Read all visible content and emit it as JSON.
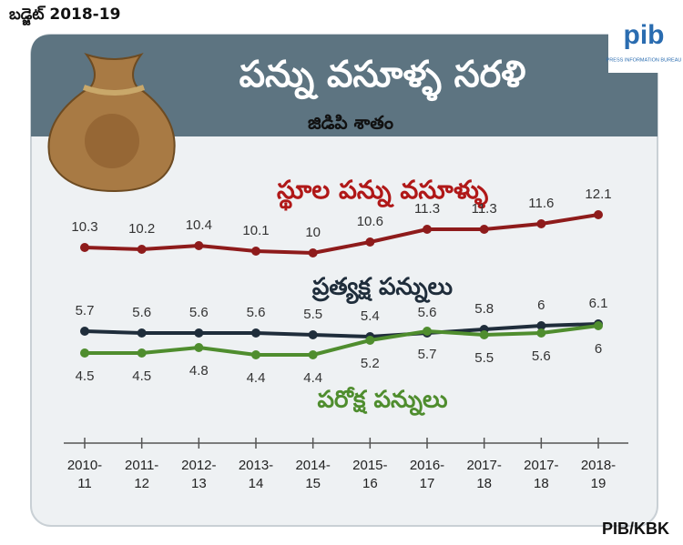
{
  "chart_data": {
    "type": "line",
    "badge": "బడ్జెట్ 2018-19",
    "title": "పన్ను వసూళ్ళ సరళి",
    "subtitle": "జిడిపి శాతం",
    "logo": "pib",
    "logo_caption": "PRESS INFORMATION BUREAU",
    "source": "PIB/KBK",
    "categories": [
      "2010-11",
      "2011-12",
      "2012-13",
      "2013-14",
      "2014-15",
      "2015-16",
      "2016-17",
      "2017-18",
      "2017-18",
      "2018-19"
    ],
    "ylim": [
      4,
      12.5
    ],
    "series": [
      {
        "name": "స్థూల పన్ను వసూళ్ళు",
        "color": "#8e1b1b",
        "values": [
          10.3,
          10.2,
          10.4,
          10.1,
          10.0,
          10.6,
          11.3,
          11.3,
          11.6,
          12.1
        ]
      },
      {
        "name": "ప్రత్యక్ష పన్నులు",
        "color": "#1f2d3b",
        "values": [
          5.7,
          5.6,
          5.6,
          5.6,
          5.5,
          5.4,
          5.6,
          5.8,
          6.0,
          6.1
        ]
      },
      {
        "name": "పరోక్ష పన్నులు",
        "color": "#4f8d2e",
        "values": [
          4.5,
          4.5,
          4.8,
          4.4,
          4.4,
          5.2,
          5.7,
          5.5,
          5.6,
          6.0
        ]
      }
    ]
  }
}
